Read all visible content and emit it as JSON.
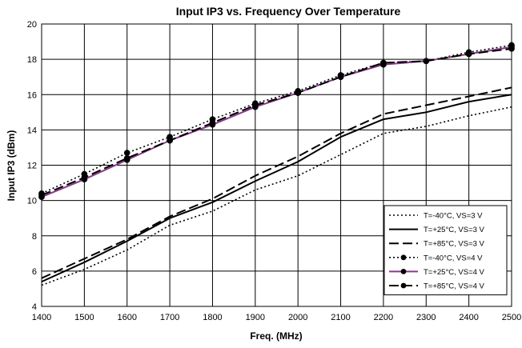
{
  "chart_data": {
    "type": "line",
    "title": "Input IP3 vs. Frequency Over Temperature",
    "xlabel": "Freq. (MHz)",
    "ylabel": "Input IP3 (dBm)",
    "xlim": [
      1400,
      2500
    ],
    "ylim": [
      4,
      20
    ],
    "x_ticks": [
      1400,
      1500,
      1600,
      1700,
      1800,
      1900,
      2000,
      2100,
      2200,
      2300,
      2400,
      2500
    ],
    "y_ticks": [
      4,
      6,
      8,
      10,
      12,
      14,
      16,
      18,
      20
    ],
    "grid": true,
    "legend_position": "bottom-right",
    "x": [
      1400,
      1500,
      1600,
      1700,
      1800,
      1900,
      2000,
      2100,
      2200,
      2300,
      2400,
      2500
    ],
    "series": [
      {
        "name": "T=-40°C, VS=3 V",
        "values": [
          5.2,
          6.1,
          7.2,
          8.6,
          9.4,
          10.6,
          11.4,
          12.6,
          13.8,
          14.2,
          14.8,
          15.3
        ],
        "color": "#000000",
        "style": "dotted",
        "marker": "none"
      },
      {
        "name": "T=+25°C, VS=3 V",
        "values": [
          5.4,
          6.5,
          7.7,
          9.0,
          9.9,
          11.1,
          12.2,
          13.6,
          14.6,
          15.0,
          15.6,
          16.0
        ],
        "color": "#000000",
        "style": "solid",
        "marker": "none"
      },
      {
        "name": "T=+85°C, VS=3 V",
        "values": [
          5.6,
          6.7,
          7.8,
          9.1,
          10.1,
          11.4,
          12.5,
          13.8,
          14.9,
          15.4,
          15.9,
          16.4
        ],
        "color": "#000000",
        "style": "dashed",
        "marker": "none"
      },
      {
        "name": "T=-40°C, VS=4 V",
        "values": [
          10.4,
          11.5,
          12.7,
          13.6,
          14.6,
          15.5,
          16.2,
          17.1,
          17.8,
          17.9,
          18.4,
          18.8
        ],
        "color": "#000000",
        "style": "dotted",
        "marker": "circle"
      },
      {
        "name": "T=+25°C, VS=4 V",
        "values": [
          10.2,
          11.2,
          12.3,
          13.4,
          14.3,
          15.3,
          16.1,
          17.0,
          17.7,
          17.9,
          18.3,
          18.7
        ],
        "color": "#8B3A8B",
        "style": "solid",
        "marker": "circle"
      },
      {
        "name": "T=+85°C, VS=4 V",
        "values": [
          10.3,
          11.3,
          12.4,
          13.4,
          14.4,
          15.4,
          16.1,
          17.0,
          17.8,
          17.9,
          18.3,
          18.6
        ],
        "color": "#000000",
        "style": "dashed",
        "marker": "circle"
      }
    ]
  }
}
